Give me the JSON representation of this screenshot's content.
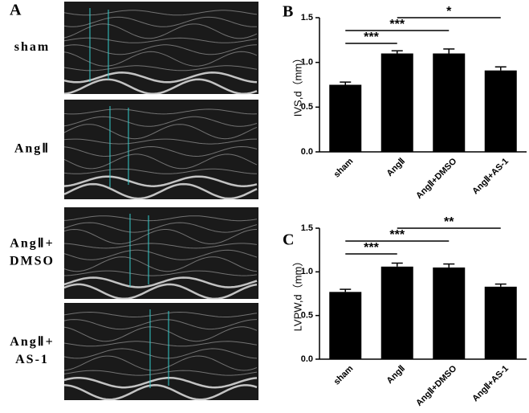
{
  "echo_panel": {
    "label": "A",
    "rows": [
      [
        "sham"
      ],
      [
        "AngⅡ"
      ],
      [
        "AngⅡ+",
        "DMSO"
      ],
      [
        "AngⅡ+",
        "AS-1"
      ]
    ]
  },
  "chart_data": [
    {
      "type": "bar",
      "panel_label": "B",
      "ylabel": "IVS,d（mm）",
      "categories": [
        "sham",
        "AngⅡ",
        "AngⅡ+DMSO",
        "AngⅡ+AS-1"
      ],
      "values": [
        0.75,
        1.1,
        1.1,
        0.91
      ],
      "errors": [
        0.03,
        0.03,
        0.05,
        0.04
      ],
      "color": "#000000",
      "ylim": [
        0,
        1.5
      ],
      "yticks": [
        {
          "value": 0,
          "label": "0.0"
        },
        0.5,
        {
          "value": 1,
          "label": "1.0"
        },
        1.5
      ],
      "annotations": [
        {
          "text": "***",
          "between": [
            "sham",
            "AngⅡ"
          ]
        },
        {
          "text": "***",
          "between": [
            "sham",
            "AngⅡ+DMSO"
          ]
        },
        {
          "text": "*",
          "between": [
            "AngⅡ",
            "AngⅡ+AS-1"
          ]
        }
      ]
    },
    {
      "type": "bar",
      "panel_label": "C",
      "ylabel": "LVPW,d（mm）",
      "categories": [
        "sham",
        "AngⅡ",
        "AngⅡ+DMSO",
        "AngⅡ+AS-1"
      ],
      "values": [
        0.77,
        1.06,
        1.05,
        0.83
      ],
      "errors": [
        0.03,
        0.04,
        0.04,
        0.03
      ],
      "color": "#000000",
      "ylim": [
        0,
        1.5
      ],
      "yticks": [
        {
          "value": 0,
          "label": "0.0"
        },
        0.5,
        {
          "value": 1,
          "label": "1.0"
        },
        1.5
      ],
      "annotations": [
        {
          "text": "***",
          "between": [
            "sham",
            "AngⅡ"
          ]
        },
        {
          "text": "***",
          "between": [
            "sham",
            "AngⅡ+DMSO"
          ]
        },
        {
          "text": "**",
          "between": [
            "AngⅡ",
            "AngⅡ+AS-1"
          ]
        }
      ]
    }
  ]
}
